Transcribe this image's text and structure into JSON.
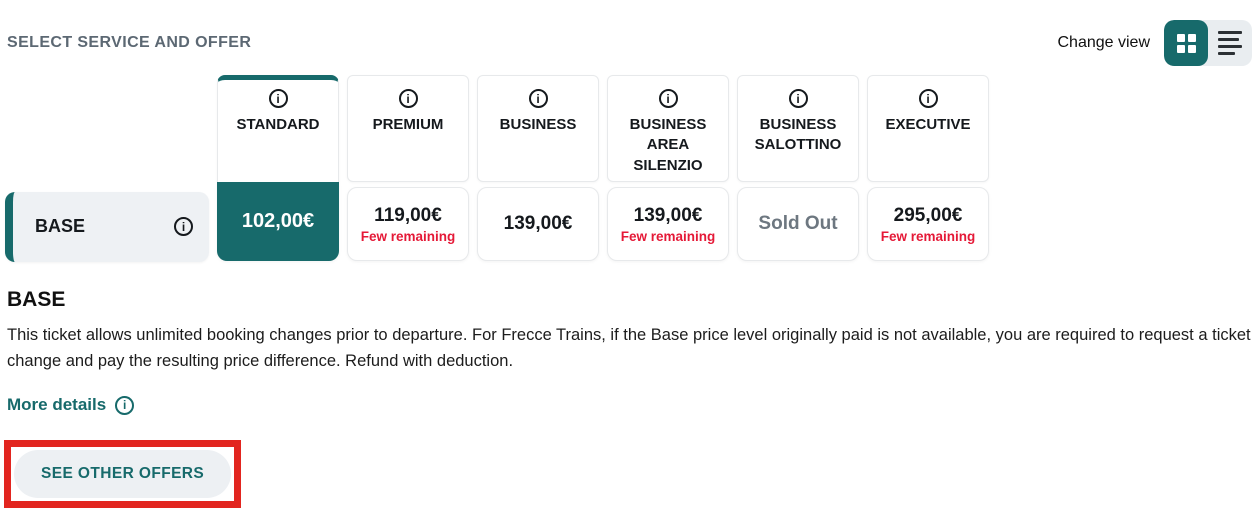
{
  "header": {
    "title": "SELECT SERVICE AND OFFER",
    "change_view_label": "Change view"
  },
  "view_toggle": {
    "options": [
      {
        "name": "grid-view",
        "active": true
      },
      {
        "name": "list-view",
        "active": false
      }
    ]
  },
  "matrix": {
    "columns": [
      {
        "name": "STANDARD",
        "selected": true
      },
      {
        "name": "PREMIUM",
        "selected": false
      },
      {
        "name": "BUSINESS",
        "selected": false
      },
      {
        "name": "BUSINESS AREA SILENZIO",
        "selected": false
      },
      {
        "name": "BUSINESS SALOTTINO",
        "selected": false
      },
      {
        "name": "EXECUTIVE",
        "selected": false
      }
    ],
    "rows": [
      {
        "label": "BASE",
        "cells": [
          {
            "price": "102,00€",
            "selected": true
          },
          {
            "price": "119,00€",
            "note": "Few remaining"
          },
          {
            "price": "139,00€"
          },
          {
            "price": "139,00€",
            "note": "Few remaining"
          },
          {
            "status": "Sold Out"
          },
          {
            "price": "295,00€",
            "note": "Few remaining"
          }
        ]
      }
    ]
  },
  "details": {
    "title": "BASE",
    "description": "This ticket allows unlimited booking changes prior to departure. For Frecce Trains, if the Base price level originally paid is not available, you are required to request a ticket change and pay the resulting price difference. Refund with deduction.",
    "more_details_label": "More details"
  },
  "actions": {
    "see_other_offers_label": "SEE OTHER OFFERS"
  },
  "colors": {
    "accent_teal": "#176a6b",
    "alert_red": "#e51937",
    "annotation_red": "#e2251f",
    "sold_out_gray": "#6d7780",
    "heading_gray": "#5c6873"
  }
}
